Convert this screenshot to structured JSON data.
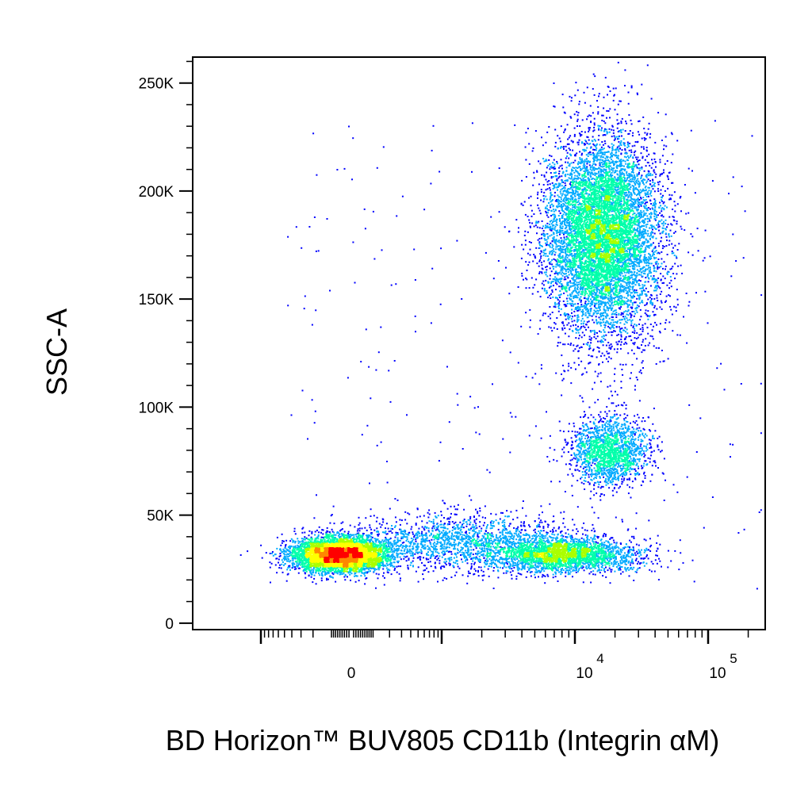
{
  "chart_data": {
    "type": "scatter",
    "title": "",
    "xlabel": "BD Horizon™ BUV805 CD11b (Integrin αM)",
    "ylabel": "SSC-A",
    "x_scale": "biexponential",
    "xlim": [
      -2000,
      180000
    ],
    "ylim": [
      -3000,
      262000
    ],
    "grid": false,
    "legend": "none",
    "density_colormap": [
      "#0000ff",
      "#00aaff",
      "#00ffaa",
      "#aaff00",
      "#ffff00",
      "#ff8800",
      "#ff0000"
    ],
    "x_ticks": [
      {
        "value": 0,
        "base": "0",
        "exp": ""
      },
      {
        "value": 10000,
        "base": "10",
        "exp": "4"
      },
      {
        "value": 100000,
        "base": "10",
        "exp": "5"
      }
    ],
    "y_ticks": [
      {
        "value": 0,
        "label": "0"
      },
      {
        "value": 50000,
        "label": "50K"
      },
      {
        "value": 100000,
        "label": "100K"
      },
      {
        "value": 150000,
        "label": "150K"
      },
      {
        "value": 200000,
        "label": "200K"
      },
      {
        "value": 250000,
        "label": "250K"
      }
    ],
    "populations": [
      {
        "x_center": -50,
        "y_center": 32000,
        "count": 5200
      },
      {
        "x_center": 8000,
        "y_center": 32000,
        "count": 2600
      },
      {
        "x_center": 1500,
        "y_center": 38000,
        "count": 1600
      },
      {
        "x_center": 18000,
        "y_center": 80000,
        "count": 1700
      },
      {
        "x_center": 16000,
        "y_center": 180000,
        "count": 8500
      }
    ]
  }
}
